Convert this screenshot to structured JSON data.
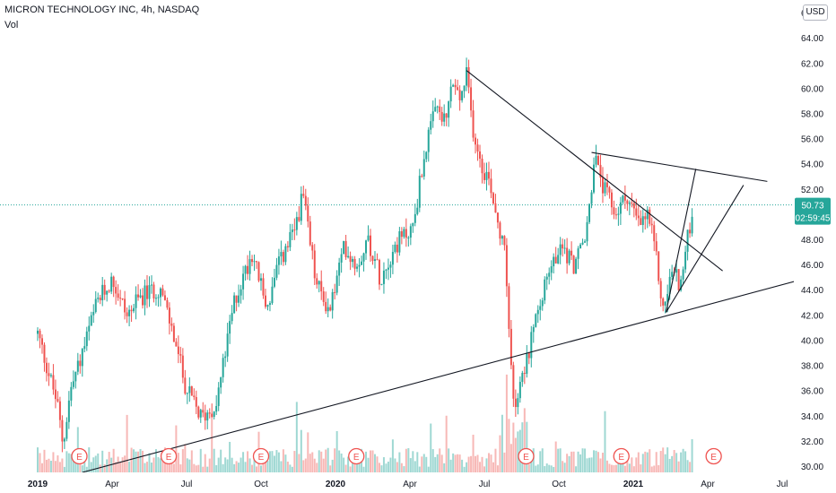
{
  "header": {
    "symbol_line": "MICRON TECHNOLOGY INC, 4h, NASDAQ",
    "volume_label": "Vol",
    "currency_button": "USD"
  },
  "colors": {
    "up": "#26a69a",
    "down": "#ef5350",
    "vol_up": "#9fd8d3",
    "vol_down": "#f7b8b6",
    "trendline": "#131722",
    "axis_text": "#131722",
    "price_badge": "#26a69a",
    "earnings_border": "#ef5350"
  },
  "chart_data": {
    "type": "candlestick",
    "title": "MICRON TECHNOLOGY INC, 4h, NASDAQ",
    "x_axis": {
      "tick_labels": [
        "2019",
        "Apr",
        "Jul",
        "Oct",
        "2020",
        "Apr",
        "Jul",
        "Oct",
        "2021",
        "Apr",
        "Jul"
      ]
    },
    "y_axis": {
      "min": 29.5,
      "max": 67,
      "position": "right",
      "tick_labels": [
        "30.00",
        "32.00",
        "34.00",
        "36.00",
        "38.00",
        "40.00",
        "42.00",
        "44.00",
        "46.00",
        "48.00",
        "50.00",
        "52.00",
        "54.00",
        "56.00",
        "58.00",
        "60.00",
        "62.00",
        "64.00",
        "66.00"
      ]
    },
    "last_price": {
      "value": 50.73,
      "label": "50.73",
      "countdown": "02:59:45"
    },
    "price_path": [
      {
        "t": 0.0,
        "p": 40.5
      },
      {
        "t": 0.03,
        "p": 38.0
      },
      {
        "t": 0.065,
        "p": 35.0
      },
      {
        "t": 0.085,
        "p": 31.7
      },
      {
        "t": 0.11,
        "p": 36.0
      },
      {
        "t": 0.15,
        "p": 39.0
      },
      {
        "t": 0.2,
        "p": 43.0
      },
      {
        "t": 0.25,
        "p": 44.8
      },
      {
        "t": 0.3,
        "p": 42.0
      },
      {
        "t": 0.35,
        "p": 43.5
      },
      {
        "t": 0.41,
        "p": 44.2
      },
      {
        "t": 0.46,
        "p": 40.0
      },
      {
        "t": 0.5,
        "p": 36.0
      },
      {
        "t": 0.55,
        "p": 33.8
      },
      {
        "t": 0.6,
        "p": 35.0
      },
      {
        "t": 0.66,
        "p": 43.0
      },
      {
        "t": 0.72,
        "p": 47.0
      },
      {
        "t": 0.77,
        "p": 42.5
      },
      {
        "t": 0.81,
        "p": 46.0
      },
      {
        "t": 0.86,
        "p": 48.5
      },
      {
        "t": 0.89,
        "p": 51.5
      },
      {
        "t": 0.935,
        "p": 44.5
      },
      {
        "t": 0.98,
        "p": 42.3
      },
      {
        "t": 1.03,
        "p": 47.5
      },
      {
        "t": 1.07,
        "p": 46.0
      },
      {
        "t": 1.11,
        "p": 48.0
      },
      {
        "t": 1.15,
        "p": 45.0
      },
      {
        "t": 1.2,
        "p": 47.5
      },
      {
        "t": 1.26,
        "p": 49.0
      },
      {
        "t": 1.3,
        "p": 55.0
      },
      {
        "t": 1.34,
        "p": 58.5
      },
      {
        "t": 1.37,
        "p": 57.0
      },
      {
        "t": 1.39,
        "p": 60.5
      },
      {
        "t": 1.42,
        "p": 59.0
      },
      {
        "t": 1.44,
        "p": 61.0
      },
      {
        "t": 1.46,
        "p": 57.0
      },
      {
        "t": 1.49,
        "p": 54.0
      },
      {
        "t": 1.52,
        "p": 52.5
      },
      {
        "t": 1.54,
        "p": 50.0
      },
      {
        "t": 1.57,
        "p": 47.0
      },
      {
        "t": 1.58,
        "p": 42.0
      },
      {
        "t": 1.6,
        "p": 34.0
      },
      {
        "t": 1.62,
        "p": 37.0
      },
      {
        "t": 1.65,
        "p": 39.0
      },
      {
        "t": 1.68,
        "p": 43.0
      },
      {
        "t": 1.72,
        "p": 45.5
      },
      {
        "t": 1.76,
        "p": 47.5
      },
      {
        "t": 1.8,
        "p": 46.0
      },
      {
        "t": 1.84,
        "p": 48.0
      },
      {
        "t": 1.87,
        "p": 54.5
      },
      {
        "t": 1.9,
        "p": 52.0
      },
      {
        "t": 1.94,
        "p": 50.0
      },
      {
        "t": 1.98,
        "p": 51.5
      },
      {
        "t": 2.02,
        "p": 49.0
      },
      {
        "t": 2.05,
        "p": 50.0
      },
      {
        "t": 2.08,
        "p": 46.0
      },
      {
        "t": 2.1,
        "p": 42.3
      },
      {
        "t": 2.13,
        "p": 45.5
      },
      {
        "t": 2.16,
        "p": 44.5
      },
      {
        "t": 2.2,
        "p": 50.7
      }
    ],
    "trendlines": [
      {
        "from": {
          "t": 0.15,
          "p": 29.5
        },
        "to": {
          "t": 3.1,
          "p": 48.2
        }
      },
      {
        "from": {
          "t": 1.44,
          "p": 61.4
        },
        "to": {
          "t": 2.3,
          "p": 45.5
        }
      },
      {
        "from": {
          "t": 1.86,
          "p": 54.9
        },
        "to": {
          "t": 2.45,
          "p": 52.6
        }
      },
      {
        "from": {
          "t": 2.11,
          "p": 42.2
        },
        "to": {
          "t": 2.37,
          "p": 52.3
        }
      },
      {
        "from": {
          "t": 2.11,
          "p": 42.2
        },
        "to": {
          "t": 2.21,
          "p": 53.6
        }
      }
    ],
    "earnings_markers": {
      "label": "E",
      "positions": [
        0.14,
        0.44,
        0.75,
        1.07,
        1.64,
        1.96,
        2.27
      ]
    }
  }
}
